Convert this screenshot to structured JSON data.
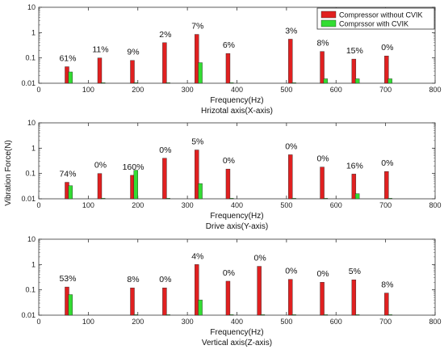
{
  "chart_data": [
    {
      "type": "bar",
      "scale": "log",
      "xlabel": "Frequency(Hz)",
      "subtitle": "Hrizotal axis(X-axis)",
      "xlim": [
        0,
        800
      ],
      "ylim": [
        0.01,
        10
      ],
      "xticks": [
        "0",
        "100",
        "200",
        "300",
        "400",
        "500",
        "600",
        "700",
        "800"
      ],
      "yticks": [
        "10",
        "1",
        "0.1",
        "0.01"
      ],
      "series": [
        {
          "name": "Compressor without CVIK",
          "color": "#e02020",
          "x": [
            57,
            123,
            189,
            254,
            319,
            382,
            508,
            572,
            636,
            702
          ],
          "values": [
            0.045,
            0.1,
            0.08,
            0.4,
            0.85,
            0.15,
            0.55,
            0.18,
            0.09,
            0.12
          ]
        },
        {
          "name": "Comprssor with CVIK",
          "color": "#33dd33",
          "x": [
            64,
            130,
            196,
            261,
            326,
            389,
            515,
            579,
            643,
            709
          ],
          "values": [
            0.028,
            0.0105,
            0.0105,
            0.0105,
            0.065,
            0.0105,
            0.0105,
            0.015,
            0.015,
            0.015
          ]
        }
      ],
      "labels": [
        {
          "x": 57,
          "text": "61%"
        },
        {
          "x": 123,
          "text": "11%"
        },
        {
          "x": 189,
          "text": "9%"
        },
        {
          "x": 254,
          "text": "2%"
        },
        {
          "x": 319,
          "text": "7%"
        },
        {
          "x": 382,
          "text": "6%"
        },
        {
          "x": 508,
          "text": "3%"
        },
        {
          "x": 572,
          "text": "8%"
        },
        {
          "x": 636,
          "text": "15%"
        },
        {
          "x": 702,
          "text": "0%"
        }
      ]
    },
    {
      "type": "bar",
      "scale": "log",
      "xlabel": "Frequency(Hz)",
      "subtitle": "Drive axis(Y-axis)",
      "xlim": [
        0,
        800
      ],
      "ylim": [
        0.01,
        10
      ],
      "xticks": [
        "0",
        "100",
        "200",
        "300",
        "400",
        "500",
        "600",
        "700",
        "800"
      ],
      "yticks": [
        "10",
        "1",
        "0.1",
        "0.01"
      ],
      "series": [
        {
          "name": "Compressor without CVIK",
          "color": "#e02020",
          "x": [
            57,
            123,
            189,
            254,
            319,
            382,
            508,
            572,
            636,
            702
          ],
          "values": [
            0.045,
            0.1,
            0.085,
            0.4,
            0.85,
            0.15,
            0.55,
            0.18,
            0.095,
            0.12
          ]
        },
        {
          "name": "Comprssor with CVIK",
          "color": "#33dd33",
          "x": [
            64,
            130,
            196,
            261,
            326,
            389,
            515,
            579,
            643,
            709
          ],
          "values": [
            0.033,
            0.0105,
            0.135,
            0.0105,
            0.04,
            0.0105,
            0.0105,
            0.0105,
            0.016,
            0.0105
          ]
        }
      ],
      "labels": [
        {
          "x": 57,
          "text": "74%"
        },
        {
          "x": 123,
          "text": "0%"
        },
        {
          "x": 189,
          "text": "160%"
        },
        {
          "x": 254,
          "text": "0%"
        },
        {
          "x": 319,
          "text": "5%"
        },
        {
          "x": 382,
          "text": "0%"
        },
        {
          "x": 508,
          "text": "0%"
        },
        {
          "x": 572,
          "text": "0%"
        },
        {
          "x": 636,
          "text": "16%"
        },
        {
          "x": 702,
          "text": "0%"
        }
      ]
    },
    {
      "type": "bar",
      "scale": "log",
      "xlabel": "Frequency(Hz)",
      "subtitle": "Vertical axis(Z-axis)",
      "xlim": [
        0,
        800
      ],
      "ylim": [
        0.01,
        10
      ],
      "xticks": [
        "0",
        "100",
        "200",
        "300",
        "400",
        "500",
        "600",
        "700",
        "800"
      ],
      "yticks": [
        "10",
        "1",
        "0.1",
        "0.01"
      ],
      "series": [
        {
          "name": "Compressor without CVIK",
          "color": "#e02020",
          "x": [
            57,
            189,
            254,
            319,
            382,
            445,
            508,
            572,
            636,
            702
          ],
          "values": [
            0.13,
            0.12,
            0.12,
            1.0,
            0.22,
            0.85,
            0.26,
            0.2,
            0.25,
            0.075
          ]
        },
        {
          "name": "Comprssor with CVIK",
          "color": "#33dd33",
          "x": [
            64,
            196,
            261,
            326,
            389,
            452,
            515,
            579,
            643,
            709
          ],
          "values": [
            0.065,
            0.0105,
            0.0105,
            0.04,
            0.0105,
            0.0105,
            0.0105,
            0.0105,
            0.0105,
            0.0105
          ]
        }
      ],
      "labels": [
        {
          "x": 57,
          "text": "53%"
        },
        {
          "x": 189,
          "text": "8%"
        },
        {
          "x": 254,
          "text": "0%"
        },
        {
          "x": 319,
          "text": "4%"
        },
        {
          "x": 382,
          "text": "0%"
        },
        {
          "x": 445,
          "text": "0%"
        },
        {
          "x": 508,
          "text": "0%"
        },
        {
          "x": 572,
          "text": "0%"
        },
        {
          "x": 636,
          "text": "5%"
        },
        {
          "x": 702,
          "text": "8%"
        }
      ]
    }
  ],
  "shared": {
    "ylabel": "Vibration Force(N)",
    "legend": {
      "placement": "top-right",
      "items": [
        {
          "label": "Compressor without CVIK",
          "color": "#e02020"
        },
        {
          "label": "Comprssor with CVIK",
          "color": "#33dd33"
        }
      ]
    }
  }
}
